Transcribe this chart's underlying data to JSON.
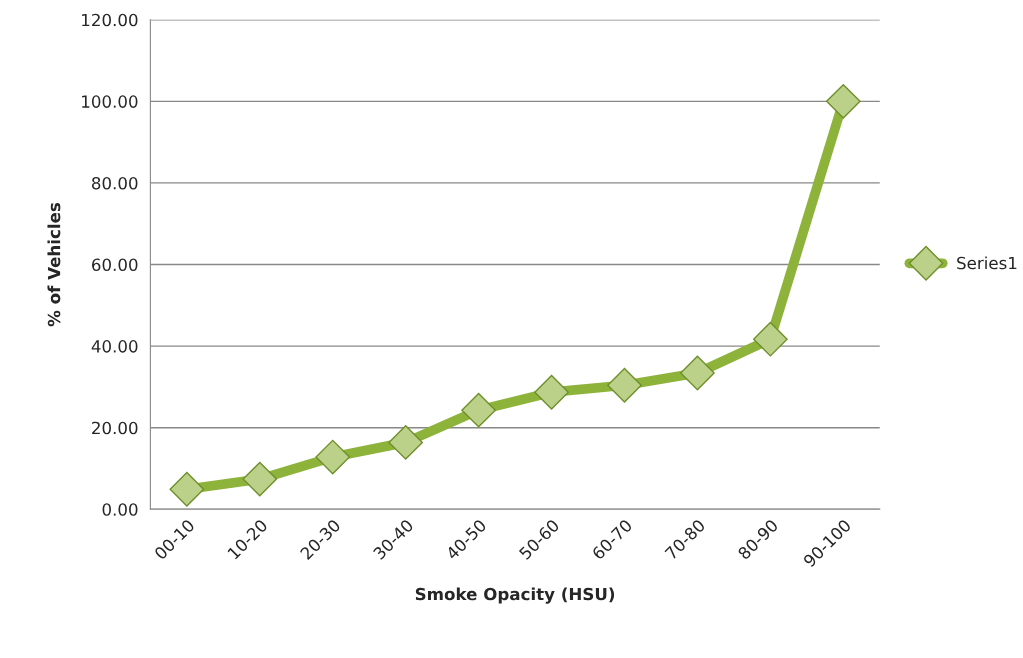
{
  "chart_data": {
    "type": "line",
    "xlabel": "Smoke Opacity (HSU)",
    "ylabel": "% of Vehicles",
    "categories": [
      "00-10",
      "10-20",
      "20-30",
      "30-40",
      "40-50",
      "50-60",
      "60-70",
      "70-80",
      "80-90",
      "90-100"
    ],
    "series": [
      {
        "name": "Series1",
        "color": "#8db33a",
        "values": [
          4.9,
          7.4,
          12.8,
          16.4,
          24.3,
          28.7,
          30.4,
          33.4,
          41.7,
          100
        ]
      }
    ],
    "ylim": [
      0,
      120
    ],
    "yticks": [
      {
        "value": 0,
        "label": "0.00"
      },
      {
        "value": 20,
        "label": "20.00"
      },
      {
        "value": 40,
        "label": "40.00"
      },
      {
        "value": 60,
        "label": "60.00"
      },
      {
        "value": 80,
        "label": "80.00"
      },
      {
        "value": 100,
        "label": "100.00"
      },
      {
        "value": 120,
        "label": "120.00"
      }
    ],
    "grid": "y",
    "legend": "right",
    "marker": "diamond",
    "line_style": "solid"
  }
}
